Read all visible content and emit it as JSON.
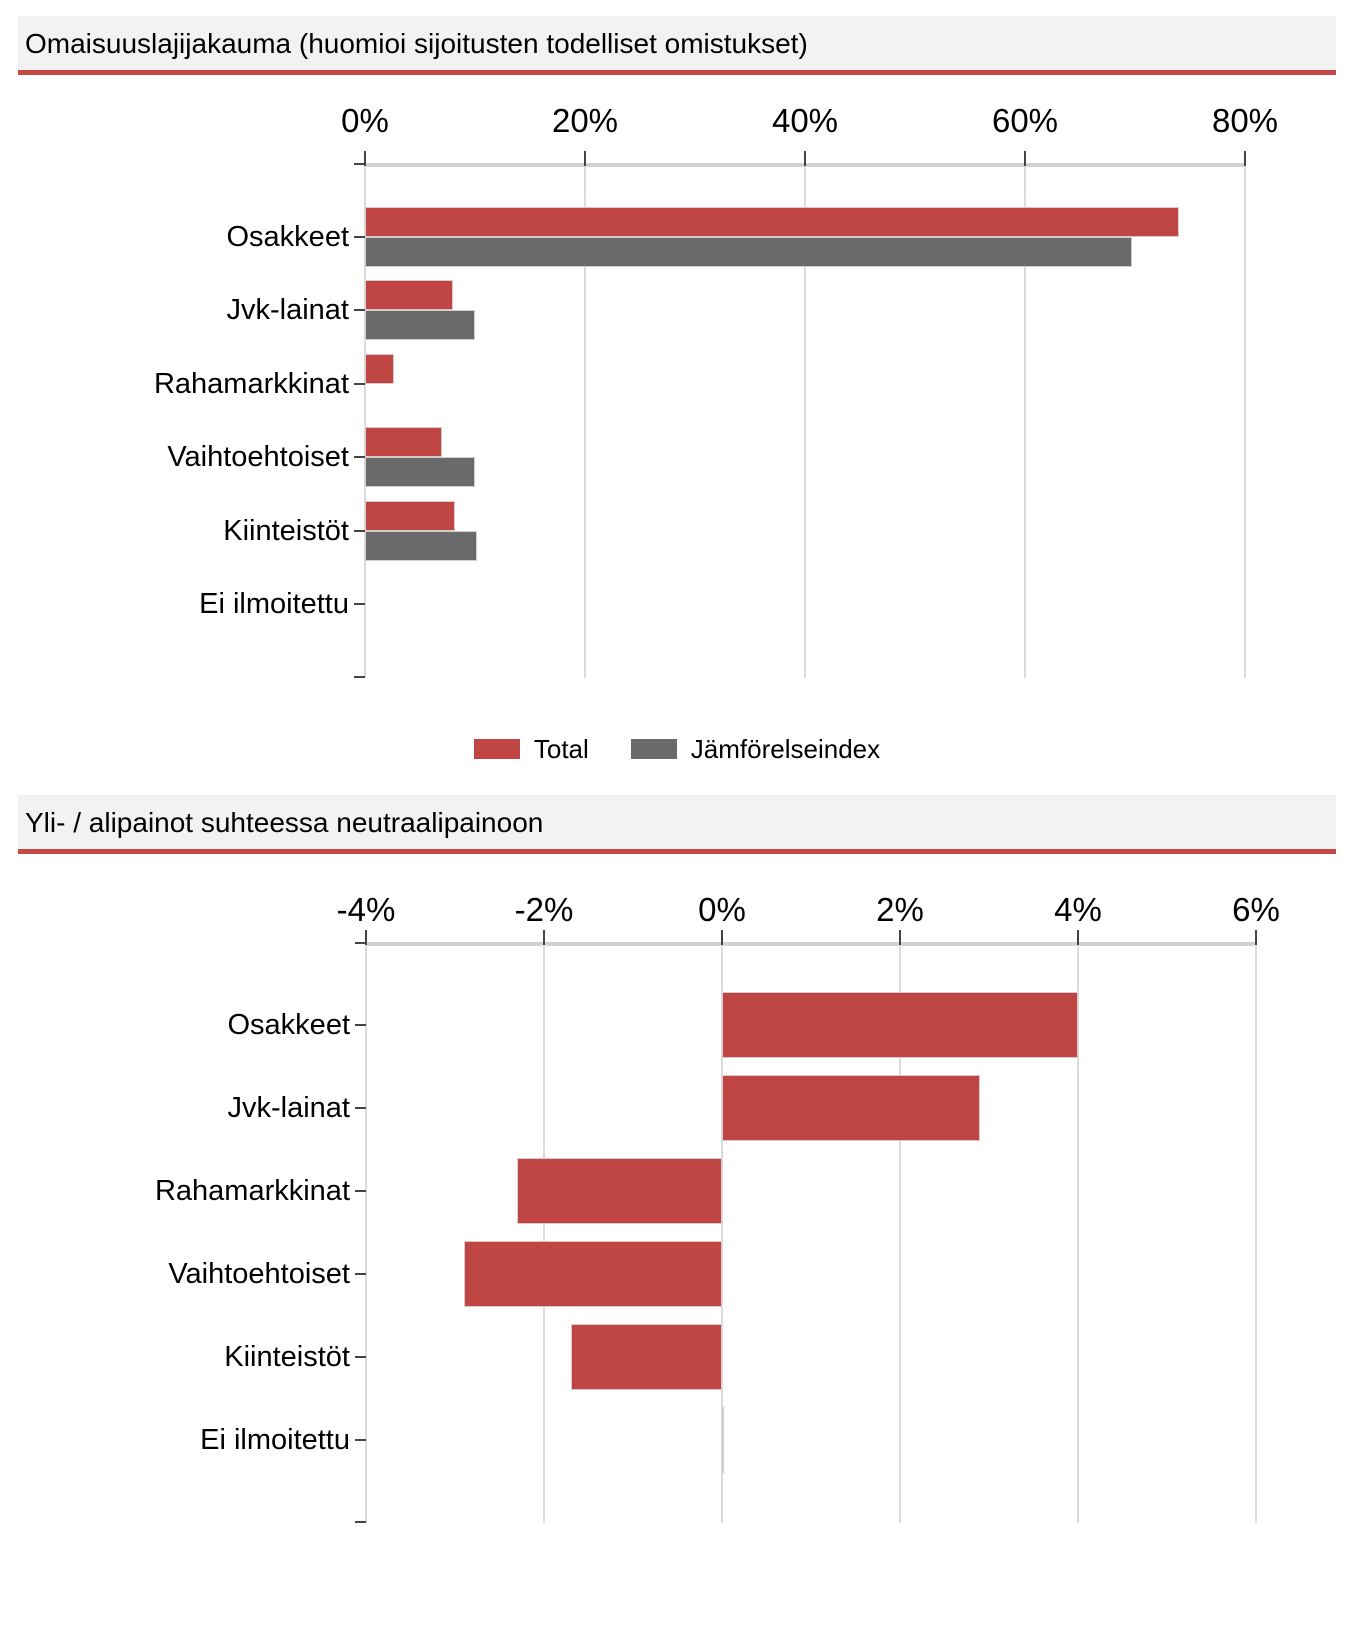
{
  "colors": {
    "total": "#C04643",
    "benchmark": "#6A6A6A",
    "title_bg": "#F2F2F2",
    "title_rule": "#C44A43",
    "grid": "#DBDBDB",
    "axis_band": "#D2D2D2",
    "tick": "#454545",
    "text": "#000000"
  },
  "legend": {
    "items": [
      {
        "label": "Total",
        "color_key": "total"
      },
      {
        "label": "Jämförelseindex",
        "color_key": "benchmark"
      }
    ]
  },
  "chart_data": [
    {
      "type": "bar",
      "orientation": "horizontal",
      "title": "Omaisuuslajijakauma (huomioi sijoitusten todelliset omistukset)",
      "categories": [
        "Osakkeet",
        "Jvk-lainat",
        "Rahamarkkinat",
        "Vaihtoehtoiset",
        "Kiinteistöt",
        "Ei ilmoitettu"
      ],
      "series": [
        {
          "name": "Total",
          "color_key": "total",
          "values": [
            74,
            8,
            2.6,
            7,
            8.2,
            0
          ]
        },
        {
          "name": "Jämförelseindex",
          "color_key": "benchmark",
          "values": [
            69.7,
            10,
            0,
            10,
            10.2,
            0
          ]
        }
      ],
      "x_ticks": [
        "0%",
        "20%",
        "40%",
        "60%",
        "80%"
      ],
      "x_tick_values": [
        0,
        20,
        40,
        60,
        80
      ],
      "xlim": [
        0,
        80
      ],
      "grid": true,
      "legend_position": "bottom"
    },
    {
      "type": "bar",
      "orientation": "horizontal",
      "title": "Yli- / alipainot suhteessa neutraalipainoon",
      "categories": [
        "Osakkeet",
        "Jvk-lainat",
        "Rahamarkkinat",
        "Vaihtoehtoiset",
        "Kiinteistöt",
        "Ei ilmoitettu"
      ],
      "series": [
        {
          "name": "Total",
          "color_key": "total",
          "values": [
            4.0,
            2.9,
            -2.3,
            -2.9,
            -1.7,
            0.02
          ]
        }
      ],
      "x_ticks": [
        "-4%",
        "-2%",
        "0%",
        "2%",
        "4%",
        "6%"
      ],
      "x_tick_values": [
        -4,
        -2,
        0,
        2,
        4,
        6
      ],
      "xlim": [
        -4,
        6
      ],
      "grid": true,
      "legend_position": "none"
    }
  ]
}
